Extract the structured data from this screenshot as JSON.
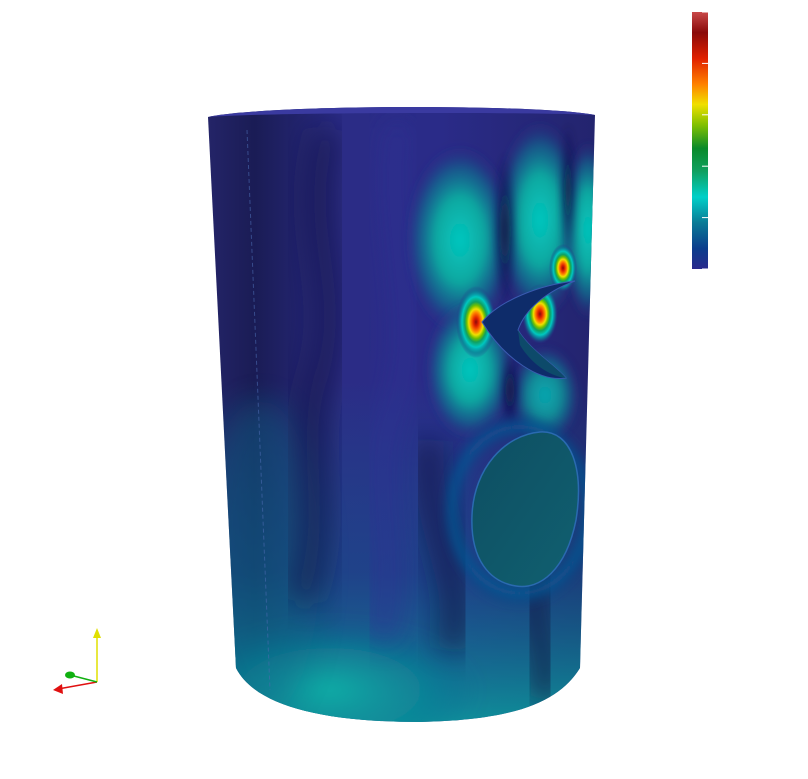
{
  "viewport": {
    "background": "#ffffff",
    "field_colormap": [
      "#2a2a8c",
      "#0b3d8c",
      "#0a7a96",
      "#00d0c8",
      "#10a050",
      "#80c000",
      "#f0e000",
      "#ff8000",
      "#e02000",
      "#8a0a0a",
      "#c83c3c"
    ],
    "surface_base_color": "#2b2a86",
    "cutout_interior_color": "#0f5a66"
  },
  "color_bar": {
    "tick_count": 6
  },
  "orientation_axes": {
    "x_axis_color": "#e01010",
    "y_axis_color": "#e0e000",
    "z_axis_color": "#10b010"
  }
}
